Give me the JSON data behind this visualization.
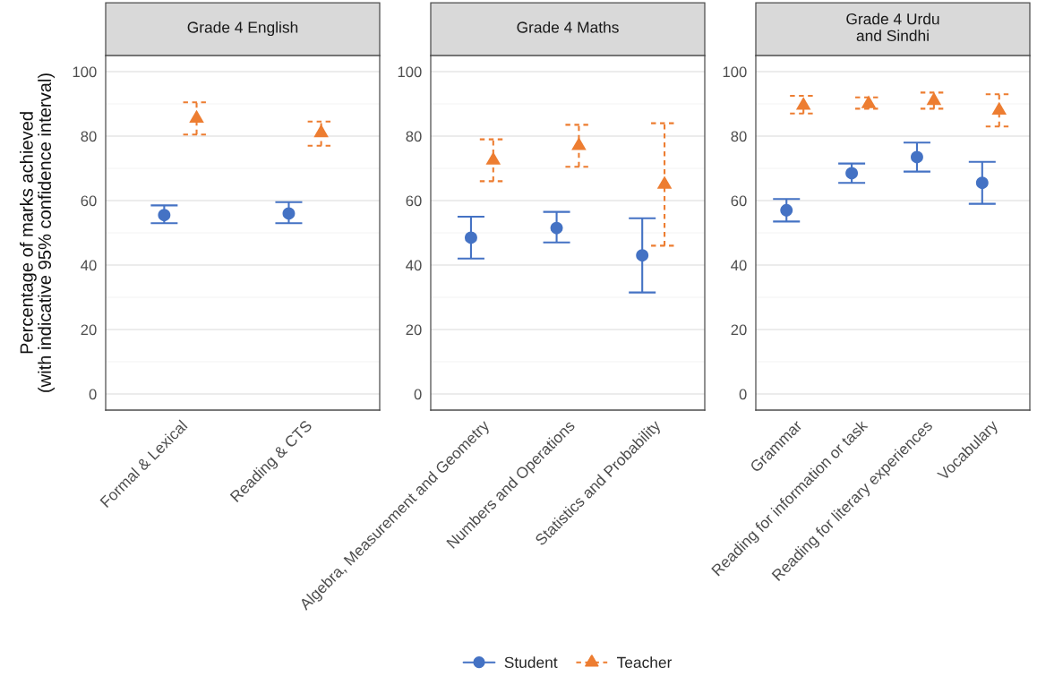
{
  "chart_data": [
    {
      "type": "scatter",
      "title": "Grade 4 English",
      "ylabel": "Percentage of marks achieved\n(with indicative 95% confidence interval)",
      "categories": [
        "Formal & Lexical",
        "Reading & CTS"
      ],
      "series": [
        {
          "name": "Student",
          "color": "#4472c4",
          "marker": "circle",
          "line_style": "solid",
          "values": [
            55.5,
            56
          ],
          "errors": [
            [
              53,
              58.5
            ],
            [
              53,
              59.5
            ]
          ]
        },
        {
          "name": "Teacher",
          "color": "#ed7d31",
          "marker": "triangle",
          "line_style": "dashed",
          "values": [
            85.5,
            81
          ],
          "errors": [
            [
              80.5,
              90.5
            ],
            [
              77,
              84.5
            ]
          ]
        }
      ],
      "ylim": [
        -5,
        105
      ],
      "yticks": [
        0,
        20,
        40,
        60,
        80,
        100
      ],
      "grid": "y",
      "legend": "bottom"
    },
    {
      "type": "scatter",
      "title": "Grade 4 Maths",
      "categories": [
        "Algebra, Measurement and Geometry",
        "Numbers and Operations",
        "Statistics and Probability"
      ],
      "series": [
        {
          "name": "Student",
          "color": "#4472c4",
          "marker": "circle",
          "line_style": "solid",
          "values": [
            48.5,
            51.5,
            43
          ],
          "errors": [
            [
              42,
              55
            ],
            [
              47,
              56.5
            ],
            [
              31.5,
              54.5
            ]
          ]
        },
        {
          "name": "Teacher",
          "color": "#ed7d31",
          "marker": "triangle",
          "line_style": "dashed",
          "values": [
            72.5,
            77,
            65
          ],
          "errors": [
            [
              66,
              79
            ],
            [
              70.5,
              83.5
            ],
            [
              46,
              84
            ]
          ]
        }
      ],
      "ylim": [
        -5,
        105
      ],
      "yticks": [
        0,
        20,
        40,
        60,
        80,
        100
      ],
      "grid": "y"
    },
    {
      "type": "scatter",
      "title": "Grade 4 Urdu\nand Sindhi",
      "categories": [
        "Grammar",
        "Reading for information or task",
        "Reading for literary experiences",
        "Vocabulary"
      ],
      "series": [
        {
          "name": "Student",
          "color": "#4472c4",
          "marker": "circle",
          "line_style": "solid",
          "values": [
            57,
            68.5,
            73.5,
            65.5
          ],
          "errors": [
            [
              53.5,
              60.5
            ],
            [
              65.5,
              71.5
            ],
            [
              69,
              78
            ],
            [
              59,
              72
            ]
          ]
        },
        {
          "name": "Teacher",
          "color": "#ed7d31",
          "marker": "triangle",
          "line_style": "dashed",
          "values": [
            89.5,
            90,
            91,
            88
          ],
          "errors": [
            [
              87,
              92.5
            ],
            [
              88.5,
              92
            ],
            [
              88.5,
              93.5
            ],
            [
              83,
              93
            ]
          ]
        }
      ],
      "ylim": [
        -5,
        105
      ],
      "yticks": [
        0,
        20,
        40,
        60,
        80,
        100
      ],
      "grid": "y"
    }
  ]
}
